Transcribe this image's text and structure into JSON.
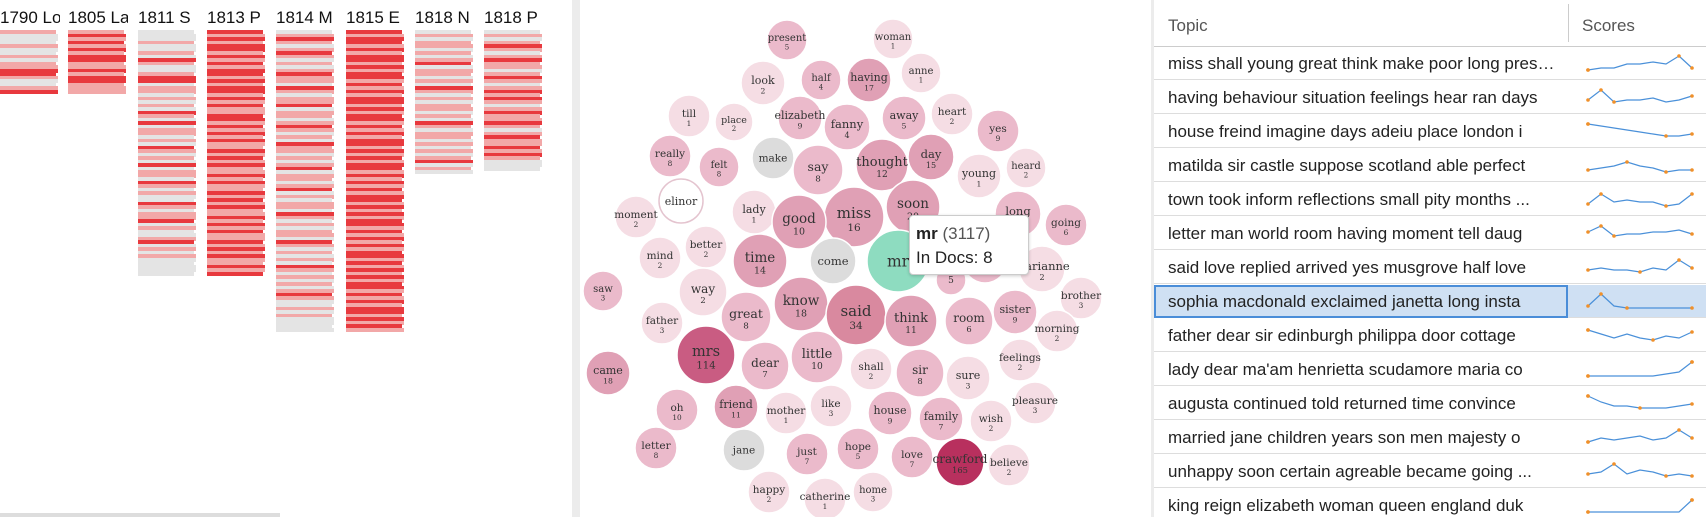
{
  "documents": [
    {
      "label": "1790 Lo",
      "rows": [
        1,
        0,
        0,
        0,
        1,
        0,
        0,
        1,
        0,
        1,
        1,
        2,
        2,
        1,
        0,
        0,
        1,
        2
      ]
    },
    {
      "label": "1805 La",
      "rows": [
        1,
        2,
        1,
        2,
        1,
        2,
        1,
        2,
        2,
        1,
        1,
        2,
        1,
        2,
        2,
        1,
        1,
        1
      ]
    },
    {
      "label": "1811 S",
      "rows": [
        0,
        0,
        0,
        1,
        0,
        0,
        1,
        0,
        2,
        1,
        0,
        0,
        1,
        2,
        2,
        0,
        1,
        1,
        0,
        1,
        0,
        1,
        0,
        2,
        1,
        0,
        2,
        0,
        1,
        1,
        0,
        1,
        0,
        2,
        1,
        0,
        1,
        0,
        2,
        0,
        1,
        1,
        0,
        2,
        1,
        0,
        1,
        0,
        0,
        2,
        1,
        0,
        1,
        1,
        2,
        0,
        1,
        0,
        0,
        1,
        2,
        0,
        1,
        0,
        1,
        0,
        0,
        0,
        0,
        0
      ]
    },
    {
      "label": "1813 P",
      "rows": [
        2,
        1,
        2,
        1,
        2,
        2,
        1,
        2,
        1,
        2,
        1,
        2,
        2,
        1,
        2,
        1,
        2,
        2,
        1,
        2,
        1,
        2,
        1,
        1,
        2,
        2,
        1,
        2,
        1,
        2,
        1,
        2,
        1,
        1,
        2,
        1,
        2,
        1,
        2,
        1,
        1,
        2,
        1,
        2,
        1,
        1,
        2,
        1,
        2,
        1,
        2,
        1,
        1,
        2,
        1,
        2,
        1,
        2,
        1,
        1,
        2,
        1,
        2,
        1,
        2,
        1,
        1,
        2,
        1,
        2
      ]
    },
    {
      "label": "1814 M",
      "rows": [
        0,
        1,
        2,
        1,
        0,
        1,
        2,
        1,
        0,
        1,
        0,
        1,
        2,
        1,
        1,
        0,
        2,
        1,
        0,
        1,
        1,
        2,
        0,
        1,
        1,
        0,
        1,
        2,
        1,
        0,
        1,
        0,
        2,
        1,
        1,
        0,
        1,
        0,
        1,
        2,
        0,
        1,
        1,
        0,
        1,
        2,
        0,
        1,
        0,
        1,
        1,
        0,
        2,
        1,
        0,
        1,
        0,
        1,
        1,
        0,
        2,
        1,
        0,
        1,
        0,
        1,
        0,
        2,
        1,
        0,
        1,
        0,
        1,
        0,
        1,
        2,
        1,
        0,
        0,
        1,
        0,
        1,
        0,
        0,
        0,
        0
      ]
    },
    {
      "label": "1815 E",
      "rows": [
        2,
        1,
        2,
        2,
        1,
        2,
        1,
        2,
        2,
        1,
        2,
        1,
        2,
        2,
        1,
        2,
        1,
        2,
        1,
        2,
        2,
        1,
        2,
        1,
        2,
        2,
        1,
        2,
        1,
        2,
        1,
        2,
        2,
        1,
        2,
        1,
        2,
        1,
        2,
        2,
        1,
        2,
        1,
        2,
        1,
        2,
        1,
        2,
        2,
        1,
        2,
        1,
        2,
        1,
        2,
        2,
        1,
        2,
        1,
        2,
        1,
        2,
        1,
        2,
        2,
        1,
        2,
        1,
        2,
        1,
        2,
        1,
        2,
        2,
        1,
        2,
        1,
        2,
        1,
        2,
        2,
        1,
        2,
        1,
        2,
        1
      ]
    },
    {
      "label": "1818 N",
      "rows": [
        0,
        1,
        0,
        1,
        1,
        0,
        1,
        0,
        1,
        2,
        0,
        1,
        1,
        0,
        1,
        0,
        2,
        1,
        0,
        1,
        0,
        1,
        1,
        0,
        1,
        0,
        2,
        1,
        0,
        1,
        1,
        0,
        1,
        0,
        1,
        0,
        1,
        2,
        0,
        1,
        0
      ]
    },
    {
      "label": "1818 P",
      "rows": [
        0,
        1,
        0,
        1,
        2,
        1,
        0,
        1,
        2,
        1,
        1,
        0,
        1,
        2,
        1,
        0,
        1,
        2,
        1,
        2,
        1,
        0,
        1,
        2,
        1,
        1,
        2,
        1,
        0,
        1,
        2,
        1,
        1,
        2,
        1,
        2,
        1,
        0,
        0,
        0
      ]
    }
  ],
  "bubbles": [
    {
      "word": "present",
      "count": "5",
      "tone": 1
    },
    {
      "word": "woman",
      "count": "1",
      "tone": 0
    },
    {
      "word": "half",
      "count": "4",
      "tone": 1
    },
    {
      "word": "having",
      "count": "17",
      "tone": 2
    },
    {
      "word": "anne",
      "count": "1",
      "tone": 0
    },
    {
      "word": "look",
      "count": "2",
      "tone": 0
    },
    {
      "word": "till",
      "count": "1",
      "tone": 0
    },
    {
      "word": "place",
      "count": "2",
      "tone": 0
    },
    {
      "word": "elizabeth",
      "count": "9",
      "tone": 1
    },
    {
      "word": "fanny",
      "count": "4",
      "tone": 1
    },
    {
      "word": "away",
      "count": "5",
      "tone": 1
    },
    {
      "word": "heart",
      "count": "2",
      "tone": 0
    },
    {
      "word": "yes",
      "count": "9",
      "tone": 1
    },
    {
      "word": "really",
      "count": "8",
      "tone": 1
    },
    {
      "word": "felt",
      "count": "8",
      "tone": 1
    },
    {
      "word": "make",
      "count": "",
      "tone": 9
    },
    {
      "word": "say",
      "count": "8",
      "tone": 1
    },
    {
      "word": "thought",
      "count": "12",
      "tone": 2
    },
    {
      "word": "day",
      "count": "15",
      "tone": 2
    },
    {
      "word": "young",
      "count": "1",
      "tone": 0
    },
    {
      "word": "heard",
      "count": "2",
      "tone": 0
    },
    {
      "word": "elinor",
      "count": "",
      "tone": 8
    },
    {
      "word": "lady",
      "count": "1",
      "tone": 0
    },
    {
      "word": "miss",
      "count": "16",
      "tone": 2
    },
    {
      "word": "soon",
      "count": "20",
      "tone": 2
    },
    {
      "word": "long",
      "count": "7",
      "tone": 1
    },
    {
      "word": "moment",
      "count": "2",
      "tone": 0
    },
    {
      "word": "good",
      "count": "10",
      "tone": 2
    },
    {
      "word": "going",
      "count": "6",
      "tone": 1
    },
    {
      "word": "better",
      "count": "2",
      "tone": 0
    },
    {
      "word": "mind",
      "count": "2",
      "tone": 0
    },
    {
      "word": "time",
      "count": "14",
      "tone": 2
    },
    {
      "word": "come",
      "count": "",
      "tone": 9
    },
    {
      "word": "mr",
      "count": "",
      "tone": 7
    },
    {
      "word": "emma",
      "count": "",
      "tone": 1
    },
    {
      "word": "marianne",
      "count": "2",
      "tone": 0
    },
    {
      "word": "saw",
      "count": "3",
      "tone": 1
    },
    {
      "word": "way",
      "count": "2",
      "tone": 0
    },
    {
      "word": "brother",
      "count": "3",
      "tone": 0
    },
    {
      "word": "know",
      "count": "18",
      "tone": 2
    },
    {
      "word": "said",
      "count": "34",
      "tone": 3
    },
    {
      "word": "think",
      "count": "11",
      "tone": 2
    },
    {
      "word": "room",
      "count": "6",
      "tone": 1
    },
    {
      "word": "sister",
      "count": "9",
      "tone": 1
    },
    {
      "word": "father",
      "count": "3",
      "tone": 0
    },
    {
      "word": "great",
      "count": "8",
      "tone": 1
    },
    {
      "word": "morning",
      "count": "2",
      "tone": 0
    },
    {
      "word": "mrs",
      "count": "114",
      "tone": 4
    },
    {
      "word": "feelings",
      "count": "2",
      "tone": 0
    },
    {
      "word": "little",
      "count": "10",
      "tone": 1
    },
    {
      "word": "shall",
      "count": "2",
      "tone": 0
    },
    {
      "word": "dear",
      "count": "7",
      "tone": 1
    },
    {
      "word": "sir",
      "count": "8",
      "tone": 1
    },
    {
      "word": "sure",
      "count": "3",
      "tone": 0
    },
    {
      "word": "came",
      "count": "18",
      "tone": 2
    },
    {
      "word": "oh",
      "count": "10",
      "tone": 1
    },
    {
      "word": "friend",
      "count": "11",
      "tone": 2
    },
    {
      "word": "mother",
      "count": "1",
      "tone": 0
    },
    {
      "word": "like",
      "count": "3",
      "tone": 0
    },
    {
      "word": "house",
      "count": "9",
      "tone": 1
    },
    {
      "word": "pleasure",
      "count": "3",
      "tone": 0
    },
    {
      "word": "family",
      "count": "7",
      "tone": 1
    },
    {
      "word": "wish",
      "count": "2",
      "tone": 0
    },
    {
      "word": "letter",
      "count": "8",
      "tone": 1
    },
    {
      "word": "jane",
      "count": "",
      "tone": 9
    },
    {
      "word": "just",
      "count": "7",
      "tone": 1
    },
    {
      "word": "hope",
      "count": "5",
      "tone": 1
    },
    {
      "word": "love",
      "count": "7",
      "tone": 1
    },
    {
      "word": "crawford",
      "count": "165",
      "tone": 5
    },
    {
      "word": "believe",
      "count": "2",
      "tone": 0
    },
    {
      "word": "happy",
      "count": "2",
      "tone": 0
    },
    {
      "word": "catherine",
      "count": "1",
      "tone": 0
    },
    {
      "word": "home",
      "count": "3",
      "tone": 0
    },
    {
      "word": "5",
      "count": "",
      "tone": 1
    }
  ],
  "tooltip": {
    "word": "mr",
    "count": "(3117)",
    "docs": "In Docs: 8"
  },
  "table": {
    "header_topic": "Topic",
    "header_scores": "Scores",
    "rows": [
      {
        "topic": "miss shall young great think make poor long present",
        "scores": [
          0.2,
          0.3,
          0.3,
          0.5,
          0.5,
          0.6,
          0.5,
          0.9,
          0.3
        ],
        "selected": false
      },
      {
        "topic": "having behaviour situation feelings hear ran days",
        "scores": [
          0.4,
          0.9,
          0.3,
          0.4,
          0.4,
          0.5,
          0.3,
          0.4,
          0.6
        ],
        "selected": false
      },
      {
        "topic": "house freind imagine days adeiu place london i",
        "scores": [
          0.9,
          0.8,
          0.7,
          0.6,
          0.5,
          0.4,
          0.3,
          0.3,
          0.4
        ],
        "selected": false
      },
      {
        "topic": "matilda sir castle suppose scotland able perfect",
        "scores": [
          0.3,
          0.4,
          0.5,
          0.7,
          0.5,
          0.4,
          0.2,
          0.3,
          0.3
        ],
        "selected": false
      },
      {
        "topic": "town took inform reflections small pity months ...",
        "scores": [
          0.3,
          0.8,
          0.4,
          0.5,
          0.4,
          0.4,
          0.2,
          0.3,
          0.8
        ],
        "selected": false
      },
      {
        "topic": "letter man world room having moment tell daug",
        "scores": [
          0.6,
          0.9,
          0.4,
          0.5,
          0.5,
          0.6,
          0.6,
          0.7,
          0.5
        ],
        "selected": false
      },
      {
        "topic": "said love replied arrived yes musgrove half love",
        "scores": [
          0.4,
          0.5,
          0.4,
          0.4,
          0.3,
          0.5,
          0.4,
          0.9,
          0.5
        ],
        "selected": false
      },
      {
        "topic": "sophia macdonald exclaimed janetta long insta",
        "scores": [
          0.3,
          0.9,
          0.3,
          0.2,
          0.2,
          0.2,
          0.2,
          0.2,
          0.2
        ],
        "selected": true
      },
      {
        "topic": "father dear sir edinburgh philippa door cottage",
        "scores": [
          0.8,
          0.6,
          0.4,
          0.6,
          0.4,
          0.3,
          0.5,
          0.4,
          0.7
        ],
        "selected": false
      },
      {
        "topic": "lady dear ma'am henrietta scudamore maria co",
        "scores": [
          0.2,
          0.2,
          0.2,
          0.2,
          0.2,
          0.2,
          0.3,
          0.4,
          0.9
        ],
        "selected": false
      },
      {
        "topic": "augusta continued told returned time convince",
        "scores": [
          0.9,
          0.6,
          0.4,
          0.4,
          0.3,
          0.3,
          0.3,
          0.4,
          0.5
        ],
        "selected": false
      },
      {
        "topic": "married jane children years son men majesty o",
        "scores": [
          0.3,
          0.5,
          0.4,
          0.5,
          0.6,
          0.4,
          0.5,
          0.9,
          0.5
        ],
        "selected": false
      },
      {
        "topic": "unhappy soon certain agreable became going ...",
        "scores": [
          0.4,
          0.5,
          0.9,
          0.4,
          0.6,
          0.5,
          0.3,
          0.4,
          0.3
        ],
        "selected": false
      },
      {
        "topic": "king reign elizabeth woman queen england duk",
        "scores": [
          0.2,
          0.2,
          0.2,
          0.2,
          0.2,
          0.2,
          0.2,
          0.2,
          0.8
        ],
        "selected": false
      }
    ]
  }
}
